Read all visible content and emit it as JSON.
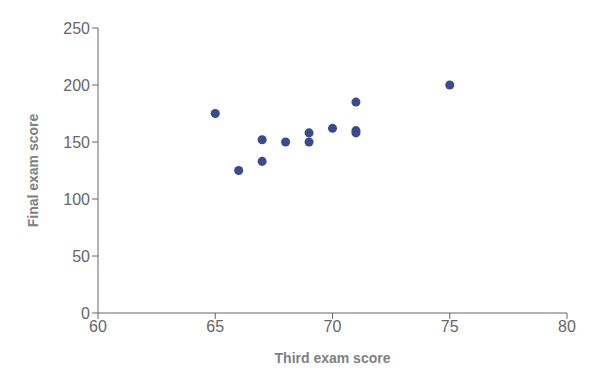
{
  "chart_data": {
    "type": "scatter",
    "xlabel": "Third exam score",
    "ylabel": "Final exam score",
    "x": [
      65,
      66,
      67,
      67,
      68,
      69,
      69,
      70,
      71,
      71,
      71,
      75
    ],
    "y": [
      175,
      125,
      133,
      152,
      150,
      158,
      150,
      162,
      185,
      160,
      158,
      200
    ],
    "xlim": [
      60,
      80
    ],
    "ylim": [
      0,
      250
    ],
    "xticks": [
      60,
      65,
      70,
      75,
      80
    ],
    "yticks": [
      0,
      50,
      100,
      150,
      200,
      250
    ],
    "color": "#3b4a8a",
    "grid": false
  }
}
